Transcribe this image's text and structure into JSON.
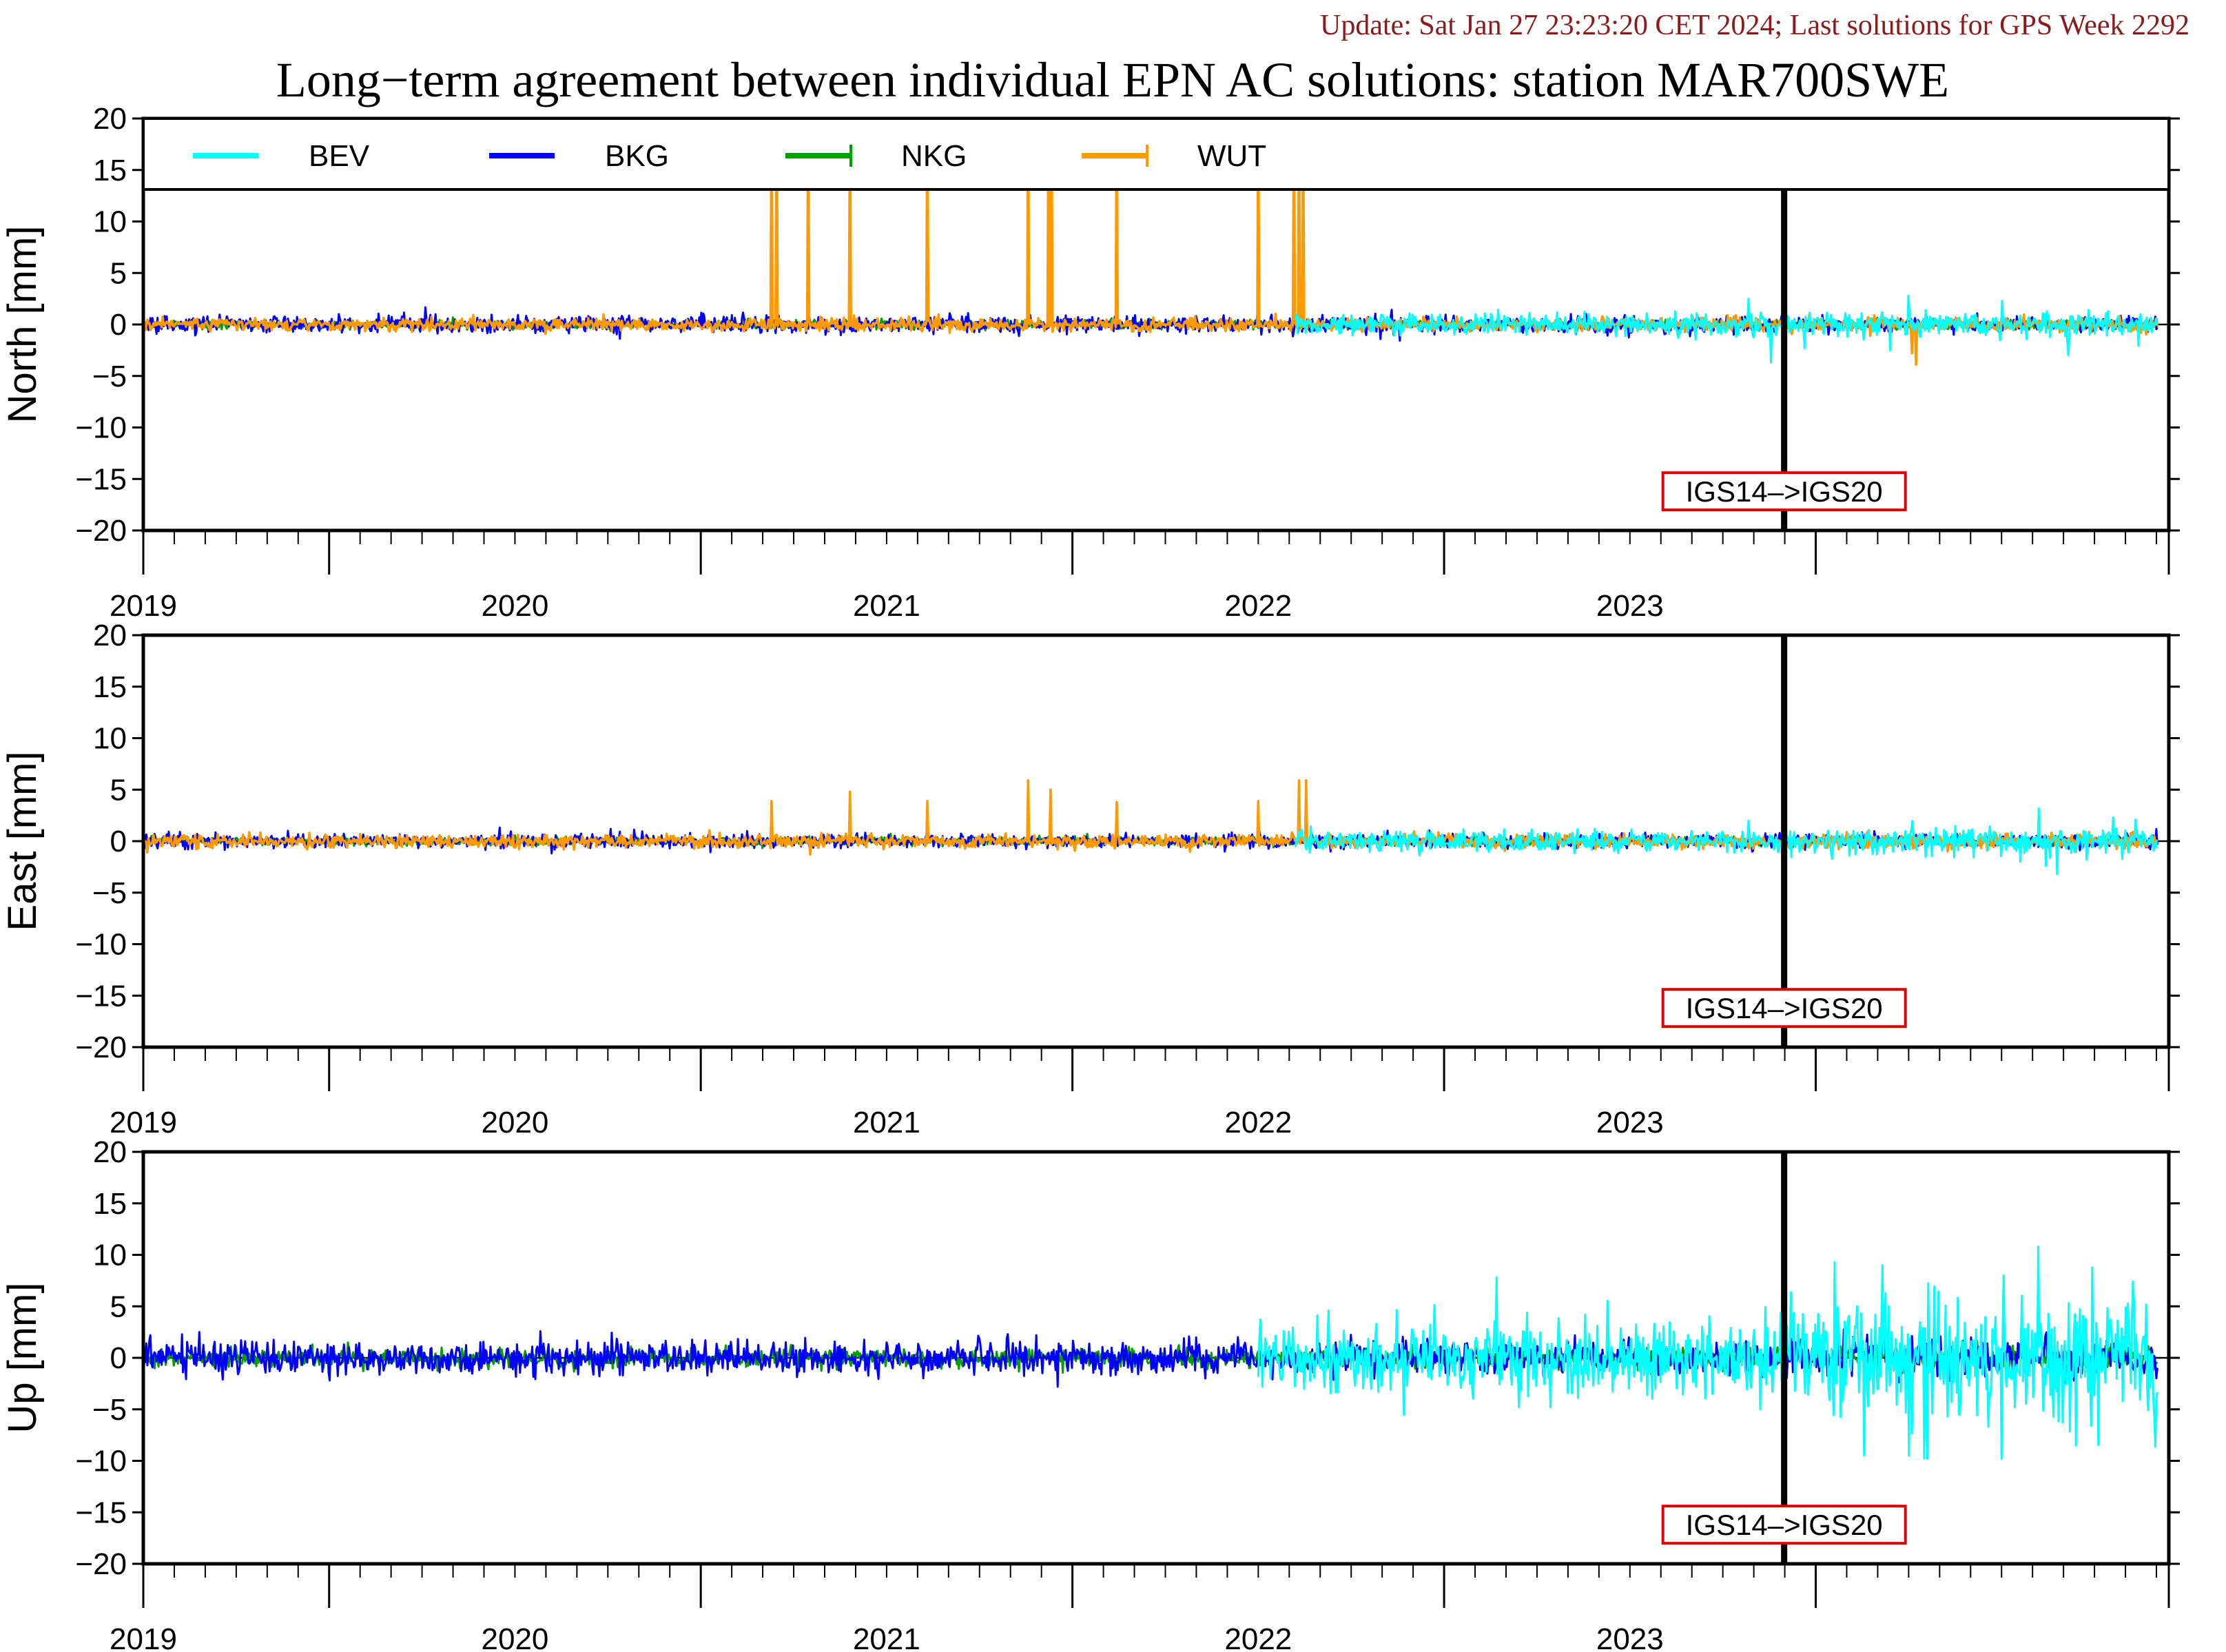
{
  "header": {
    "update_text": "Update: Sat Jan 27 23:23:20 CET 2024; Last solutions for GPS Week 2292",
    "title": "Long−term agreement between individual EPN AC solutions: station MAR700SWE"
  },
  "colors": {
    "BEV": "#00ffff",
    "BKG": "#0000ff",
    "NKG": "#00a000",
    "WUT": "#ff9900",
    "frame": "#000000",
    "annotation_border": "#e00000"
  },
  "chart_data": {
    "type": "line",
    "x_unit": "year",
    "xlim": [
      2018.5,
      2023.95
    ],
    "x_tick_labels": [
      "2019",
      "2020",
      "2021",
      "2022",
      "2023"
    ],
    "ylim": [
      -20,
      20
    ],
    "y_ticks": [
      20,
      15,
      10,
      5,
      0,
      -5,
      -10,
      -15,
      -20
    ],
    "y_tick_labels": [
      "20",
      "15",
      "10",
      "5",
      "0",
      "−5",
      "−10",
      "−15",
      "−20"
    ],
    "grid": false,
    "legend": {
      "placement": "top",
      "entries": [
        "BEV",
        "BKG",
        "NKG",
        "WUT"
      ]
    },
    "event_line": {
      "x": 2022.915,
      "label": "IGS14–>IGS20"
    },
    "panels": [
      {
        "ylabel": "North [mm]",
        "series": [
          {
            "name": "BEV",
            "start": 2021.6,
            "end": 2023.92,
            "noise_before": 0.5,
            "noise_after": 0.6,
            "spikes": [
              [
                2022.88,
                -3.7
              ],
              [
                2022.97,
                -2.3
              ],
              [
                2023.2,
                -2.5
              ],
              [
                2023.68,
                -3.0
              ],
              [
                2022.82,
                2.5
              ],
              [
                2023.25,
                2.8
              ],
              [
                2023.5,
                2.3
              ]
            ]
          },
          {
            "name": "BKG",
            "start": 2018.5,
            "end": 2023.92,
            "noise_before": 0.4,
            "noise_after": 0.35,
            "spikes": []
          },
          {
            "name": "NKG",
            "start": 2018.5,
            "end": 2023.92,
            "noise_before": 0.2,
            "noise_after": 0.2,
            "spikes": []
          },
          {
            "name": "WUT",
            "start": 2018.5,
            "end": 2023.92,
            "noise_before": 0.3,
            "noise_after": 0.35,
            "spikes": [
              [
                2020.19,
                22
              ],
              [
                2020.205,
                22
              ],
              [
                2020.29,
                22
              ],
              [
                2020.4,
                22
              ],
              [
                2020.61,
                22
              ],
              [
                2020.88,
                22
              ],
              [
                2020.935,
                22
              ],
              [
                2020.945,
                22
              ],
              [
                2021.12,
                22
              ],
              [
                2021.5,
                22
              ],
              [
                2021.595,
                22
              ],
              [
                2021.61,
                22
              ],
              [
                2021.62,
                22
              ],
              [
                2023.27,
                -3.9
              ],
              [
                2023.26,
                -2.8
              ]
            ]
          }
        ]
      },
      {
        "ylabel": "East [mm]",
        "series": [
          {
            "name": "BEV",
            "start": 2021.6,
            "end": 2023.92,
            "noise_before": 0.5,
            "noise_after": 0.6,
            "spikes": [
              [
                2022.82,
                2.0
              ],
              [
                2023.6,
                3.2
              ],
              [
                2023.65,
                -3.2
              ],
              [
                2023.62,
                -2.4
              ],
              [
                2023.8,
                2.3
              ],
              [
                2023.86,
                2.1
              ],
              [
                2023.55,
                -2.0
              ],
              [
                2023.73,
                -1.8
              ]
            ]
          },
          {
            "name": "BKG",
            "start": 2018.5,
            "end": 2023.92,
            "noise_before": 0.35,
            "noise_after": 0.35,
            "spikes": [
              [
                2018.6,
                0.9
              ],
              [
                2018.62,
                -0.8
              ],
              [
                2019.6,
                -1.2
              ]
            ]
          },
          {
            "name": "NKG",
            "start": 2018.5,
            "end": 2023.92,
            "noise_before": 0.2,
            "noise_after": 0.2,
            "spikes": []
          },
          {
            "name": "WUT",
            "start": 2018.5,
            "end": 2023.92,
            "noise_before": 0.3,
            "noise_after": 0.35,
            "spikes": [
              [
                2020.19,
                3.9
              ],
              [
                2020.295,
                -1.3
              ],
              [
                2020.4,
                4.8
              ],
              [
                2020.61,
                3.9
              ],
              [
                2020.88,
                5.9
              ],
              [
                2020.94,
                5.0
              ],
              [
                2020.96,
                -0.8
              ],
              [
                2021.12,
                3.8
              ],
              [
                2021.5,
                3.9
              ],
              [
                2021.61,
                5.9
              ],
              [
                2021.63,
                5.9
              ],
              [
                2021.64,
                -0.8
              ]
            ]
          }
        ]
      },
      {
        "ylabel": "Up [mm]",
        "series": [
          {
            "name": "BEV",
            "start": 2021.5,
            "end": 2023.92,
            "noise_before": 1.8,
            "noise_after": 3.0,
            "spikes": [
              [
                2022.14,
                7.8
              ],
              [
                2022.2,
                -4.8
              ],
              [
                2022.85,
                -5.0
              ],
              [
                2023.05,
                9.3
              ],
              [
                2023.25,
                -9.5
              ],
              [
                2023.6,
                10.8
              ],
              [
                2023.5,
                -9.8
              ],
              [
                2023.3,
                -9.8
              ],
              [
                2023.7,
                -8.5
              ],
              [
                2023.18,
                9.0
              ]
            ]
          },
          {
            "name": "BKG",
            "start": 2018.5,
            "end": 2023.92,
            "noise_before": 0.8,
            "noise_after": 0.9,
            "spikes": [
              [
                2018.52,
                2.2
              ],
              [
                2018.65,
                2.5
              ],
              [
                2019.0,
                -2.2
              ],
              [
                2020.96,
                -2.8
              ],
              [
                2021.3,
                1.9
              ]
            ]
          },
          {
            "name": "NKG",
            "start": 2018.5,
            "end": 2023.92,
            "noise_before": 0.45,
            "noise_after": 0.5,
            "spikes": [
              [
                2019.05,
                1.5
              ]
            ]
          },
          {
            "name": "WUT",
            "start": 2018.5,
            "end": 2018.5,
            "noise_before": 0.0,
            "noise_after": 0.0,
            "spikes": []
          }
        ]
      }
    ]
  }
}
